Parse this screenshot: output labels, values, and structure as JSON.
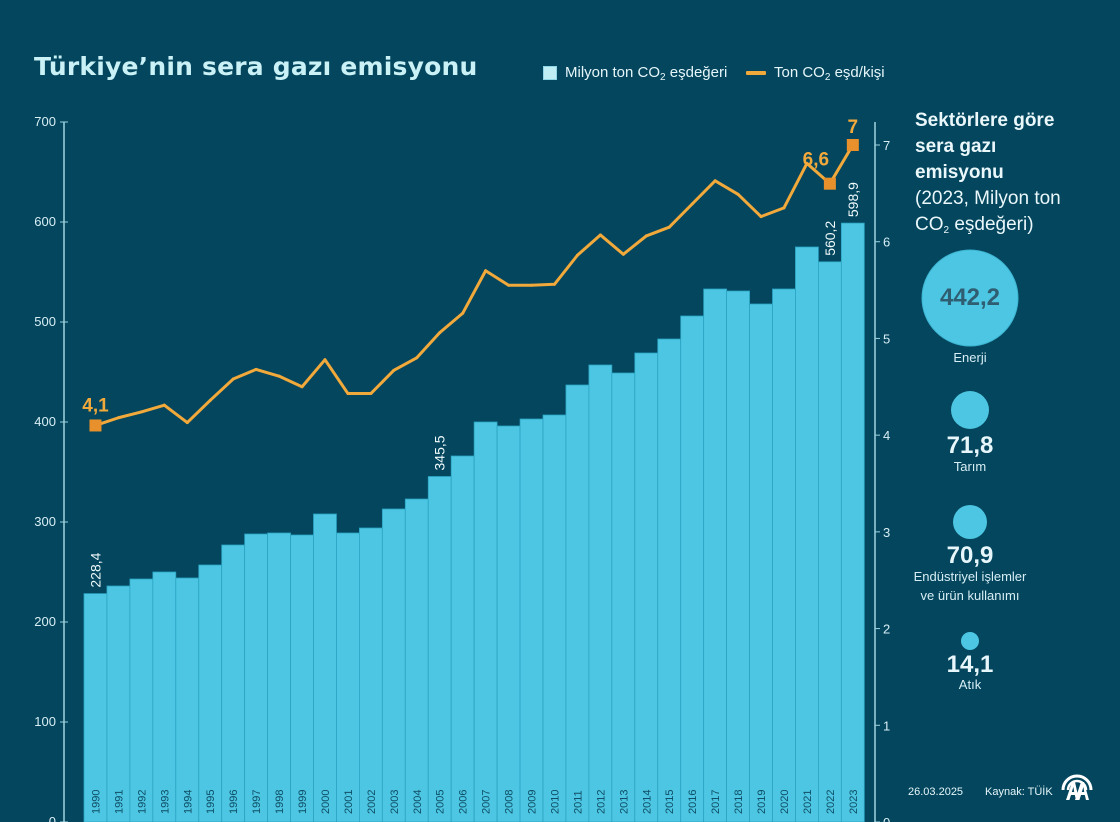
{
  "title": "Türkiye’nin sera gazı emisyonu",
  "legend": {
    "bar": {
      "pre": "Milyon ton CO",
      "sub": "2",
      "post": " eşdeğeri"
    },
    "line": {
      "pre": "Ton CO",
      "sub": "2",
      "post": " eşd/kişi"
    }
  },
  "colors": {
    "background": "#03465d",
    "bar": "#4cc6e2",
    "bar_edge": "#2aa3c2",
    "line": "#f2a93b",
    "marker": "#e8912c",
    "axis": "#9fd3e0"
  },
  "chart_data": {
    "type": "bar+line",
    "title": "Türkiye’nin sera gazı emisyonu",
    "categories": [
      "1990",
      "1991",
      "1992",
      "1993",
      "1994",
      "1995",
      "1996",
      "1997",
      "1998",
      "1999",
      "2000",
      "2001",
      "2002",
      "2003",
      "2004",
      "2005",
      "2006",
      "2007",
      "2008",
      "2009",
      "2010",
      "2011",
      "2012",
      "2013",
      "2014",
      "2015",
      "2016",
      "2017",
      "2018",
      "2019",
      "2020",
      "2021",
      "2022",
      "2023"
    ],
    "series": [
      {
        "name": "Milyon ton CO2 eşdeğeri",
        "type": "bar",
        "axis": "left",
        "values": [
          228.4,
          236,
          243,
          250,
          244,
          257,
          277,
          288,
          289,
          287,
          308,
          289,
          294,
          313,
          323,
          345.5,
          366,
          400,
          396,
          403,
          407,
          437,
          457,
          449,
          469,
          483,
          506,
          533,
          531,
          518,
          533,
          575,
          560.2,
          598.9
        ]
      },
      {
        "name": "Ton CO2 eşd/kişi",
        "type": "line",
        "axis": "right",
        "values": [
          4.1,
          4.18,
          4.24,
          4.31,
          4.13,
          4.36,
          4.58,
          4.68,
          4.61,
          4.5,
          4.78,
          4.43,
          4.43,
          4.67,
          4.8,
          5.06,
          5.26,
          5.7,
          5.55,
          5.55,
          5.56,
          5.86,
          6.07,
          5.87,
          6.06,
          6.15,
          6.39,
          6.63,
          6.49,
          6.26,
          6.35,
          6.81,
          6.6,
          7
        ]
      }
    ],
    "data_labels": {
      "bar": [
        {
          "year": "1990",
          "text": "228,4"
        },
        {
          "year": "2005",
          "text": "345,5"
        },
        {
          "year": "2022",
          "text": "560,2"
        },
        {
          "year": "2023",
          "text": "598,9"
        }
      ],
      "line": [
        {
          "year": "1990",
          "text": "4,1"
        },
        {
          "year": "2022",
          "text": "6,6"
        },
        {
          "year": "2023",
          "text": "7"
        }
      ]
    },
    "left_axis": {
      "ylim": [
        0,
        700
      ],
      "ticks": [
        "0",
        "100",
        "200",
        "300",
        "400",
        "500",
        "600",
        "700"
      ]
    },
    "right_axis": {
      "ylim": [
        0,
        7
      ],
      "ticks": [
        "0",
        "1",
        "2",
        "3",
        "4",
        "5",
        "6",
        "7"
      ]
    },
    "legend_position": "top-right",
    "grid": false
  },
  "side_panel": {
    "title_bold": [
      "Sektörlere göre",
      "sera gazı",
      "emisyonu"
    ],
    "subtitle_line1": "(2023, Milyon ton",
    "subtitle_line2_pre": "CO",
    "subtitle_line2_sub": "2",
    "subtitle_line2_post": " eşdeğeri)",
    "sectors": [
      {
        "value": "442,2",
        "num": 442.2,
        "label": "Enerji"
      },
      {
        "value": "71,8",
        "num": 71.8,
        "label": "Tarım"
      },
      {
        "value": "70,9",
        "num": 70.9,
        "label": "Endüstriyel işlemler ve ürün kullanımı",
        "label_lines": [
          "Endüstriyel işlemler",
          "ve ürün kullanımı"
        ]
      },
      {
        "value": "14,1",
        "num": 14.1,
        "label": "Atık"
      }
    ]
  },
  "footer": {
    "date": "26.03.2025",
    "source": "Kaynak: TÜİK",
    "logo": "aa-logo"
  }
}
